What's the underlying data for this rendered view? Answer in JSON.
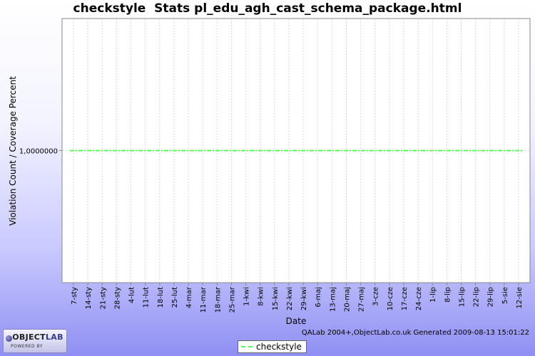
{
  "chart_data": {
    "type": "line",
    "title": "checkstyle  Stats pl_edu_agh_cast_schema_package.html",
    "xlabel": "Date",
    "ylabel": "Violation Count / Coverage Percent",
    "x_tick_labels": [
      "7-sty",
      "14-sty",
      "21-sty",
      "28-sty",
      "4-lut",
      "11-lut",
      "18-lut",
      "25-lut",
      "4-mar",
      "11-mar",
      "18-mar",
      "25-mar",
      "1-kwi",
      "8-kwi",
      "15-kwi",
      "22-kwi",
      "29-kwi",
      "6-maj",
      "13-maj",
      "20-maj",
      "27-maj",
      "3-cze",
      "10-cze",
      "17-cze",
      "24-cze",
      "1-lip",
      "8-lip",
      "15-lip",
      "22-lip",
      "29-lip",
      "5-sie",
      "12-sie"
    ],
    "y_tick_labels": [
      "1,0000000"
    ],
    "series": [
      {
        "name": "checkstyle",
        "color": "#55ff55",
        "x_start": "7-sty",
        "x_end": "12-sie",
        "value": 1.0
      }
    ],
    "ylim": [
      0,
      2
    ],
    "grid": true,
    "legend_position": "bottom"
  },
  "footer": {
    "credits": "QALab 2004+,ObjectLab.co.uk Generated 2009-08-13 15:01:22",
    "logo_main_prefix": "OBJECT",
    "logo_main_suffix": "LAB",
    "logo_sub": "POWERED BY"
  }
}
